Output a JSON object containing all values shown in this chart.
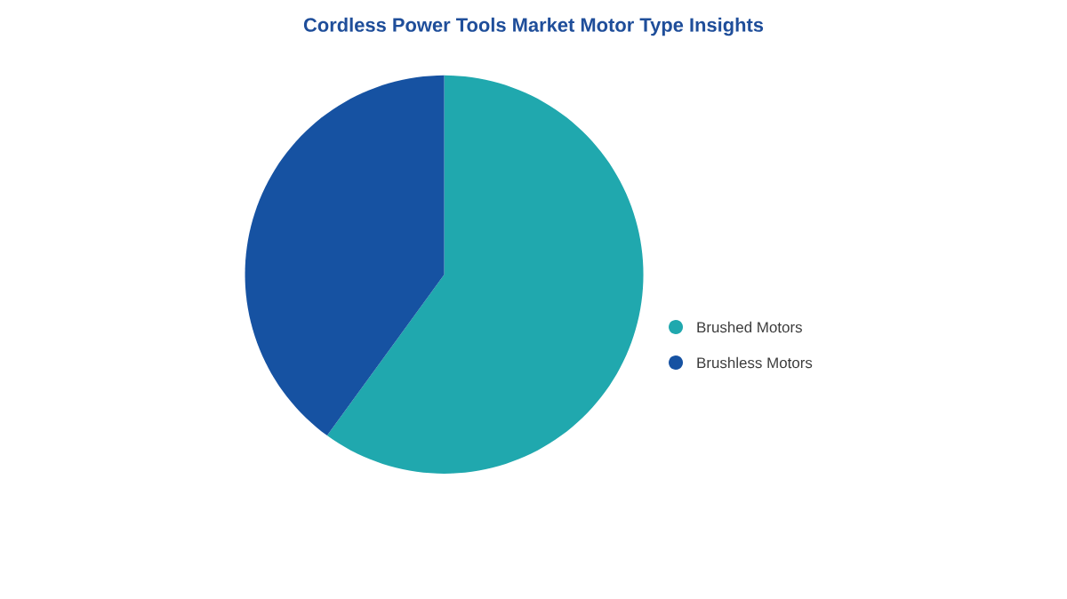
{
  "chart_data": {
    "type": "pie",
    "title": "Cordless Power Tools Market Motor Type Insights",
    "categories": [
      "Brushed Motors",
      "Brushless Motors"
    ],
    "values": [
      60,
      40
    ],
    "colors": [
      "#20a8ae",
      "#1652a2"
    ],
    "legend": "right"
  }
}
